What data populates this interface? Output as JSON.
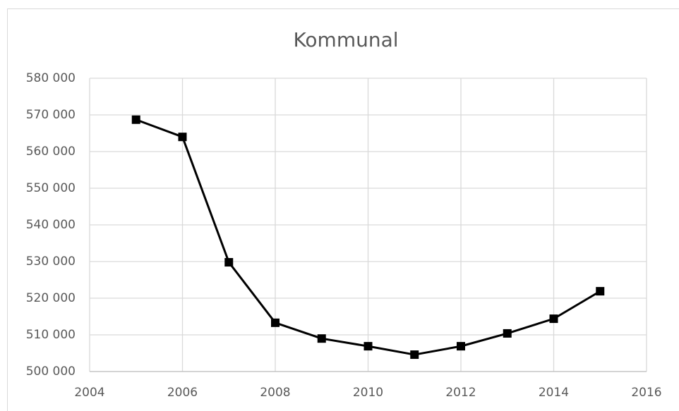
{
  "chart_data": {
    "type": "line",
    "title": "Kommunal",
    "x": [
      2005,
      2006,
      2007,
      2008,
      2009,
      2010,
      2011,
      2012,
      2013,
      2014,
      2015
    ],
    "series": [
      {
        "name": "Kommunal",
        "color": "#000000",
        "values": [
          568700,
          564000,
          529800,
          513300,
          509000,
          506900,
          504600,
          506900,
          510400,
          514400,
          521900
        ]
      }
    ],
    "xlim": [
      2004,
      2016
    ],
    "xticks": [
      2004,
      2006,
      2008,
      2010,
      2012,
      2014,
      2016
    ],
    "ylim": [
      500000,
      580000
    ],
    "yticks": [
      {
        "value": 500000,
        "label": "500 000"
      },
      {
        "value": 510000,
        "label": "510 000"
      },
      {
        "value": 520000,
        "label": "520 000"
      },
      {
        "value": 530000,
        "label": "530 000"
      },
      {
        "value": 540000,
        "label": "540 000"
      },
      {
        "value": 550000,
        "label": "550 000"
      },
      {
        "value": 560000,
        "label": "560 000"
      },
      {
        "value": 570000,
        "label": "570 000"
      },
      {
        "value": 580000,
        "label": "580 000"
      }
    ],
    "grid": true
  }
}
